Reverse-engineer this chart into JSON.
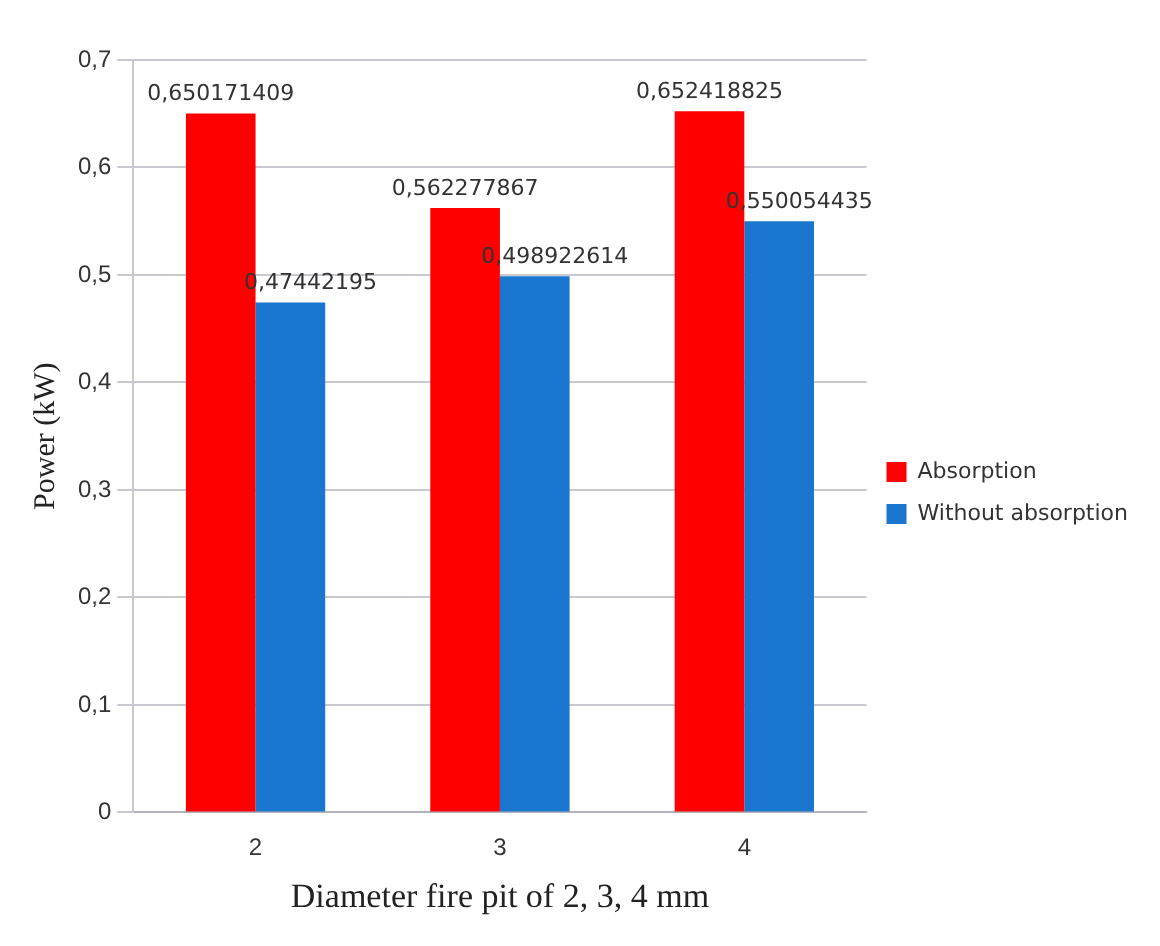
{
  "chart_data": {
    "type": "bar",
    "xlabel": "Diameter fire pit of 2, 3, 4 mm",
    "ylabel": "Power (kW)",
    "categories": [
      "2",
      "3",
      "4"
    ],
    "series": [
      {
        "name": "Absorption",
        "color": "#ff0000",
        "values": [
          0.650171409,
          0.562277867,
          0.652418825
        ],
        "value_labels": [
          "0,650171409",
          "0,562277867",
          "0,652418825"
        ]
      },
      {
        "name": "Without absorption",
        "color": "#1a75cf",
        "values": [
          0.47442195,
          0.498922614,
          0.550054435
        ],
        "value_labels": [
          "0,47442195",
          "0,498922614",
          "0,550054435"
        ]
      }
    ],
    "ylim": [
      0,
      0.7
    ],
    "yticks": [
      {
        "value": 0,
        "label": "0"
      },
      {
        "value": 0.1,
        "label": "0,1"
      },
      {
        "value": 0.2,
        "label": "0,2"
      },
      {
        "value": 0.3,
        "label": "0,3"
      },
      {
        "value": 0.4,
        "label": "0,4"
      },
      {
        "value": 0.5,
        "label": "0,5"
      },
      {
        "value": 0.6,
        "label": "0,6"
      },
      {
        "value": 0.7,
        "label": "0,7"
      }
    ],
    "grid": "y",
    "legend": "right"
  }
}
